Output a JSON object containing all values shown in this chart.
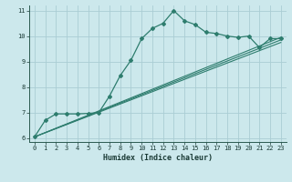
{
  "xlabel": "Humidex (Indice chaleur)",
  "ylabel": "",
  "xlim": [
    -0.5,
    23.5
  ],
  "ylim": [
    5.85,
    11.2
  ],
  "xticks": [
    0,
    1,
    2,
    3,
    4,
    5,
    6,
    7,
    8,
    9,
    10,
    11,
    12,
    13,
    14,
    15,
    16,
    17,
    18,
    19,
    20,
    21,
    22,
    23
  ],
  "yticks": [
    6,
    7,
    8,
    9,
    10,
    11
  ],
  "bg_color": "#cce8ec",
  "grid_color": "#aacdd4",
  "line_color": "#2e7d6e",
  "curve1_x": [
    0,
    1,
    2,
    3,
    4,
    5,
    6,
    7,
    8,
    9,
    10,
    11,
    12,
    13,
    14,
    15,
    16,
    17,
    18,
    19,
    20,
    21,
    22,
    23
  ],
  "curve1_y": [
    6.05,
    6.7,
    6.95,
    6.95,
    6.95,
    6.97,
    7.0,
    7.65,
    8.45,
    9.05,
    9.9,
    10.3,
    10.5,
    11.0,
    10.6,
    10.45,
    10.15,
    10.1,
    10.0,
    9.95,
    10.0,
    9.55,
    9.9,
    9.9
  ],
  "line2_x": [
    0,
    23
  ],
  "line2_y": [
    6.05,
    9.95
  ],
  "line3_x": [
    0,
    23
  ],
  "line3_y": [
    6.05,
    9.85
  ],
  "line4_x": [
    0,
    23
  ],
  "line4_y": [
    6.05,
    9.75
  ],
  "xlabel_fontsize": 6.0,
  "tick_fontsize": 5.0
}
